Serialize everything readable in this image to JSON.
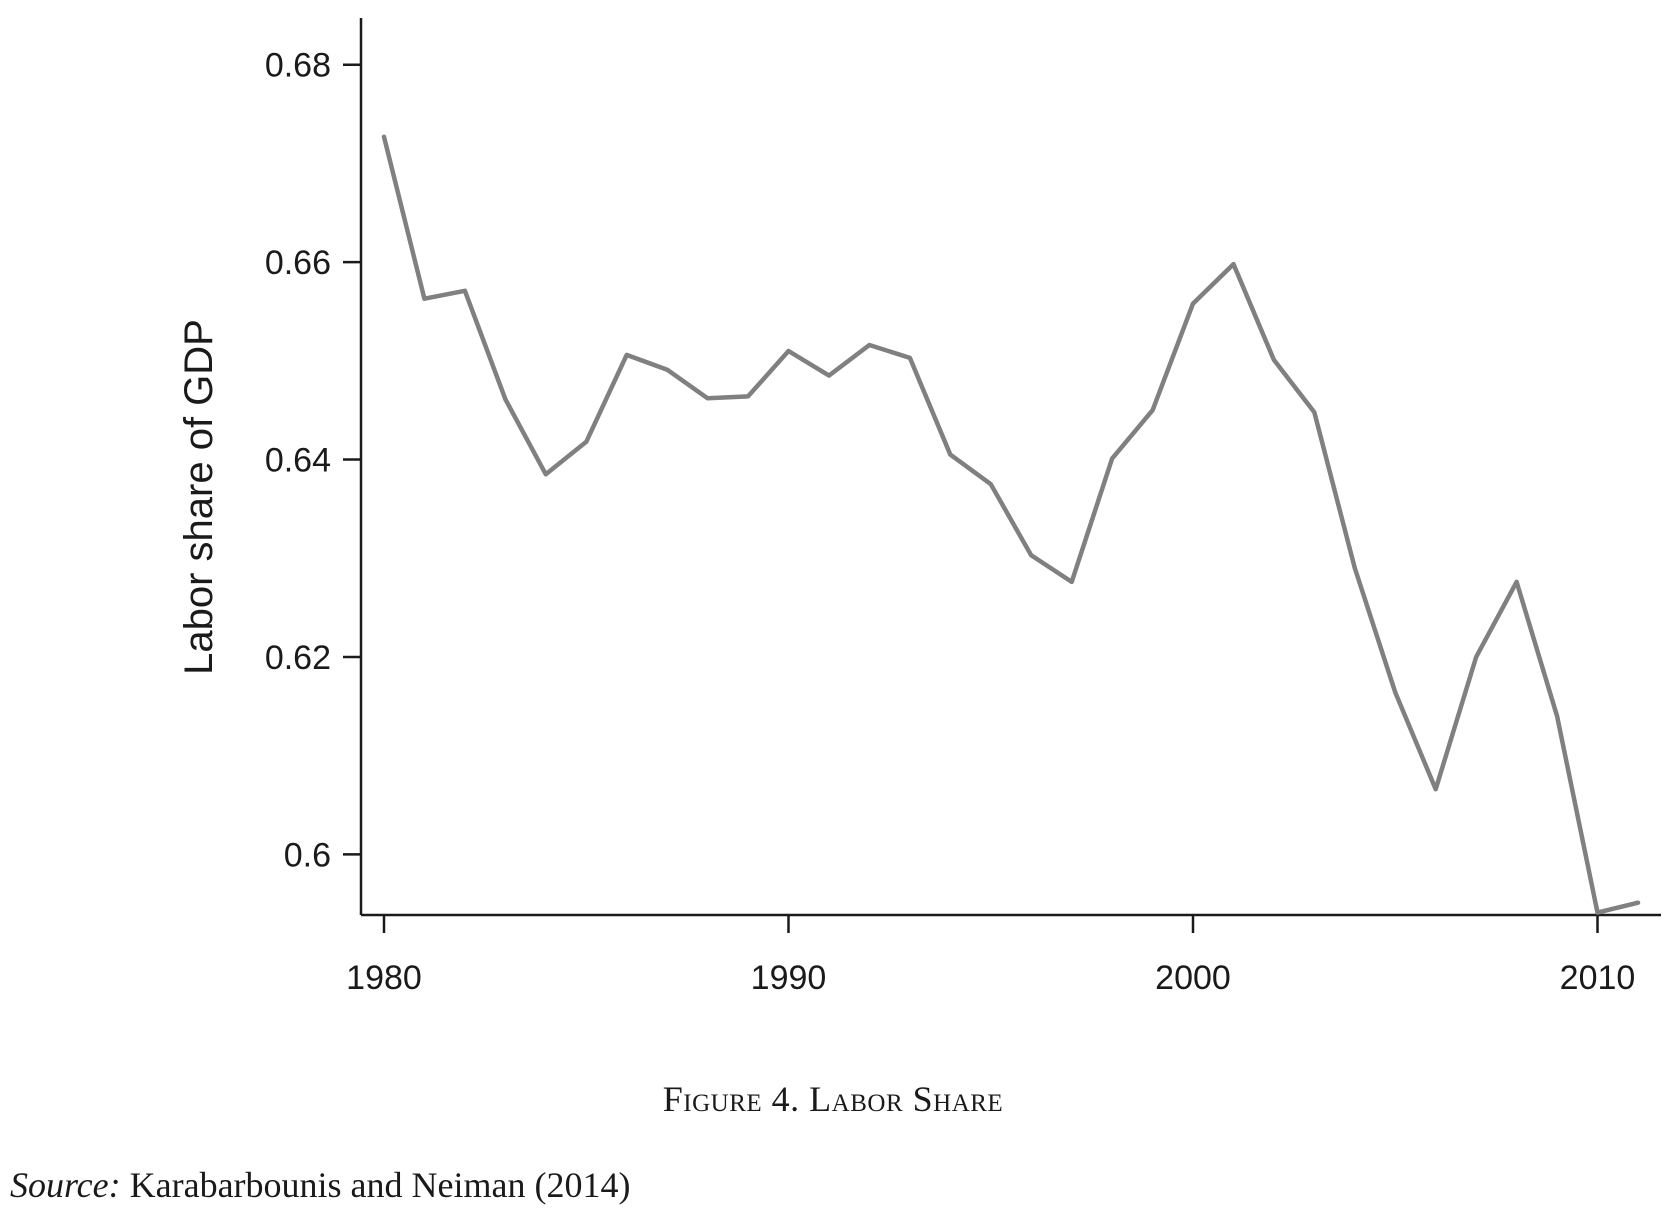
{
  "chart_data": {
    "type": "line",
    "title": "",
    "xlabel": "",
    "ylabel": "Labor share of GDP",
    "xlim": [
      1980,
      2012
    ],
    "ylim": [
      0.592,
      0.682
    ],
    "x_ticks": [
      1980,
      1990,
      2000,
      2010
    ],
    "x_tick_labels": [
      "1980",
      "1990",
      "2000",
      "2010"
    ],
    "y_ticks": [
      0.6,
      0.62,
      0.64,
      0.66,
      0.68
    ],
    "y_tick_labels": [
      "0.6",
      "0.62",
      "0.64",
      "0.66",
      "0.68"
    ],
    "grid": false,
    "line_color": "#808080",
    "series": [
      {
        "x": [
          1980,
          1981,
          1982,
          1983,
          1984,
          1985,
          1986,
          1987,
          1988,
          1989,
          1990,
          1991,
          1992,
          1993,
          1994,
          1995,
          1996,
          1997,
          1998,
          1999,
          2000,
          2001,
          2002,
          2003,
          2004,
          2005,
          2006,
          2007,
          2008,
          2009,
          2010,
          2011
        ],
        "values": [
          0.6727,
          0.6563,
          0.6571,
          0.6461,
          0.6385,
          0.6418,
          0.6506,
          0.6491,
          0.6462,
          0.6464,
          0.651,
          0.6485,
          0.6516,
          0.6503,
          0.6405,
          0.6375,
          0.6303,
          0.6276,
          0.6401,
          0.645,
          0.6558,
          0.6598,
          0.6501,
          0.6448,
          0.629,
          0.6164,
          0.6066,
          0.62,
          0.6276,
          0.614,
          0.5941,
          0.5951
        ]
      }
    ]
  },
  "caption": {
    "text": "Figure 4. Labor Share"
  },
  "source": {
    "label": "Source:",
    "text": "Karabarbounis and Neiman (2014)"
  }
}
